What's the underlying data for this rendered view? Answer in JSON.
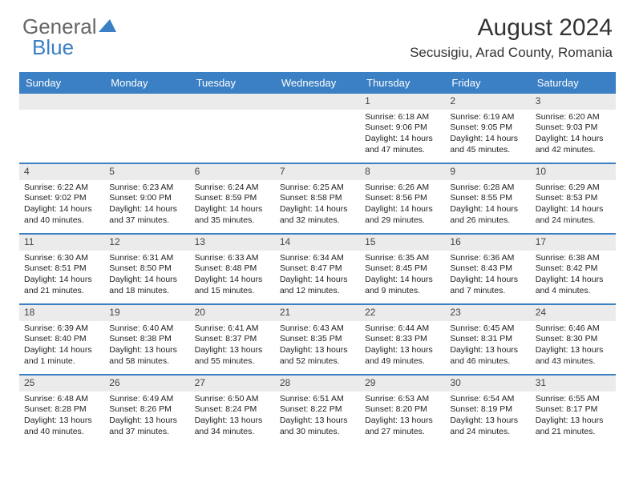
{
  "brand": {
    "part1": "General",
    "part2": "Blue"
  },
  "title": "August 2024",
  "location": "Secusigiu, Arad County, Romania",
  "colors": {
    "accent": "#3b7fc4",
    "dayRowBg": "#ebebeb",
    "text": "#222"
  },
  "dayNames": [
    "Sunday",
    "Monday",
    "Tuesday",
    "Wednesday",
    "Thursday",
    "Friday",
    "Saturday"
  ],
  "weeks": [
    [
      {
        "n": "",
        "sr": "",
        "ss": "",
        "dl": ""
      },
      {
        "n": "",
        "sr": "",
        "ss": "",
        "dl": ""
      },
      {
        "n": "",
        "sr": "",
        "ss": "",
        "dl": ""
      },
      {
        "n": "",
        "sr": "",
        "ss": "",
        "dl": ""
      },
      {
        "n": "1",
        "sr": "Sunrise: 6:18 AM",
        "ss": "Sunset: 9:06 PM",
        "dl": "Daylight: 14 hours and 47 minutes."
      },
      {
        "n": "2",
        "sr": "Sunrise: 6:19 AM",
        "ss": "Sunset: 9:05 PM",
        "dl": "Daylight: 14 hours and 45 minutes."
      },
      {
        "n": "3",
        "sr": "Sunrise: 6:20 AM",
        "ss": "Sunset: 9:03 PM",
        "dl": "Daylight: 14 hours and 42 minutes."
      }
    ],
    [
      {
        "n": "4",
        "sr": "Sunrise: 6:22 AM",
        "ss": "Sunset: 9:02 PM",
        "dl": "Daylight: 14 hours and 40 minutes."
      },
      {
        "n": "5",
        "sr": "Sunrise: 6:23 AM",
        "ss": "Sunset: 9:00 PM",
        "dl": "Daylight: 14 hours and 37 minutes."
      },
      {
        "n": "6",
        "sr": "Sunrise: 6:24 AM",
        "ss": "Sunset: 8:59 PM",
        "dl": "Daylight: 14 hours and 35 minutes."
      },
      {
        "n": "7",
        "sr": "Sunrise: 6:25 AM",
        "ss": "Sunset: 8:58 PM",
        "dl": "Daylight: 14 hours and 32 minutes."
      },
      {
        "n": "8",
        "sr": "Sunrise: 6:26 AM",
        "ss": "Sunset: 8:56 PM",
        "dl": "Daylight: 14 hours and 29 minutes."
      },
      {
        "n": "9",
        "sr": "Sunrise: 6:28 AM",
        "ss": "Sunset: 8:55 PM",
        "dl": "Daylight: 14 hours and 26 minutes."
      },
      {
        "n": "10",
        "sr": "Sunrise: 6:29 AM",
        "ss": "Sunset: 8:53 PM",
        "dl": "Daylight: 14 hours and 24 minutes."
      }
    ],
    [
      {
        "n": "11",
        "sr": "Sunrise: 6:30 AM",
        "ss": "Sunset: 8:51 PM",
        "dl": "Daylight: 14 hours and 21 minutes."
      },
      {
        "n": "12",
        "sr": "Sunrise: 6:31 AM",
        "ss": "Sunset: 8:50 PM",
        "dl": "Daylight: 14 hours and 18 minutes."
      },
      {
        "n": "13",
        "sr": "Sunrise: 6:33 AM",
        "ss": "Sunset: 8:48 PM",
        "dl": "Daylight: 14 hours and 15 minutes."
      },
      {
        "n": "14",
        "sr": "Sunrise: 6:34 AM",
        "ss": "Sunset: 8:47 PM",
        "dl": "Daylight: 14 hours and 12 minutes."
      },
      {
        "n": "15",
        "sr": "Sunrise: 6:35 AM",
        "ss": "Sunset: 8:45 PM",
        "dl": "Daylight: 14 hours and 9 minutes."
      },
      {
        "n": "16",
        "sr": "Sunrise: 6:36 AM",
        "ss": "Sunset: 8:43 PM",
        "dl": "Daylight: 14 hours and 7 minutes."
      },
      {
        "n": "17",
        "sr": "Sunrise: 6:38 AM",
        "ss": "Sunset: 8:42 PM",
        "dl": "Daylight: 14 hours and 4 minutes."
      }
    ],
    [
      {
        "n": "18",
        "sr": "Sunrise: 6:39 AM",
        "ss": "Sunset: 8:40 PM",
        "dl": "Daylight: 14 hours and 1 minute."
      },
      {
        "n": "19",
        "sr": "Sunrise: 6:40 AM",
        "ss": "Sunset: 8:38 PM",
        "dl": "Daylight: 13 hours and 58 minutes."
      },
      {
        "n": "20",
        "sr": "Sunrise: 6:41 AM",
        "ss": "Sunset: 8:37 PM",
        "dl": "Daylight: 13 hours and 55 minutes."
      },
      {
        "n": "21",
        "sr": "Sunrise: 6:43 AM",
        "ss": "Sunset: 8:35 PM",
        "dl": "Daylight: 13 hours and 52 minutes."
      },
      {
        "n": "22",
        "sr": "Sunrise: 6:44 AM",
        "ss": "Sunset: 8:33 PM",
        "dl": "Daylight: 13 hours and 49 minutes."
      },
      {
        "n": "23",
        "sr": "Sunrise: 6:45 AM",
        "ss": "Sunset: 8:31 PM",
        "dl": "Daylight: 13 hours and 46 minutes."
      },
      {
        "n": "24",
        "sr": "Sunrise: 6:46 AM",
        "ss": "Sunset: 8:30 PM",
        "dl": "Daylight: 13 hours and 43 minutes."
      }
    ],
    [
      {
        "n": "25",
        "sr": "Sunrise: 6:48 AM",
        "ss": "Sunset: 8:28 PM",
        "dl": "Daylight: 13 hours and 40 minutes."
      },
      {
        "n": "26",
        "sr": "Sunrise: 6:49 AM",
        "ss": "Sunset: 8:26 PM",
        "dl": "Daylight: 13 hours and 37 minutes."
      },
      {
        "n": "27",
        "sr": "Sunrise: 6:50 AM",
        "ss": "Sunset: 8:24 PM",
        "dl": "Daylight: 13 hours and 34 minutes."
      },
      {
        "n": "28",
        "sr": "Sunrise: 6:51 AM",
        "ss": "Sunset: 8:22 PM",
        "dl": "Daylight: 13 hours and 30 minutes."
      },
      {
        "n": "29",
        "sr": "Sunrise: 6:53 AM",
        "ss": "Sunset: 8:20 PM",
        "dl": "Daylight: 13 hours and 27 minutes."
      },
      {
        "n": "30",
        "sr": "Sunrise: 6:54 AM",
        "ss": "Sunset: 8:19 PM",
        "dl": "Daylight: 13 hours and 24 minutes."
      },
      {
        "n": "31",
        "sr": "Sunrise: 6:55 AM",
        "ss": "Sunset: 8:17 PM",
        "dl": "Daylight: 13 hours and 21 minutes."
      }
    ]
  ]
}
